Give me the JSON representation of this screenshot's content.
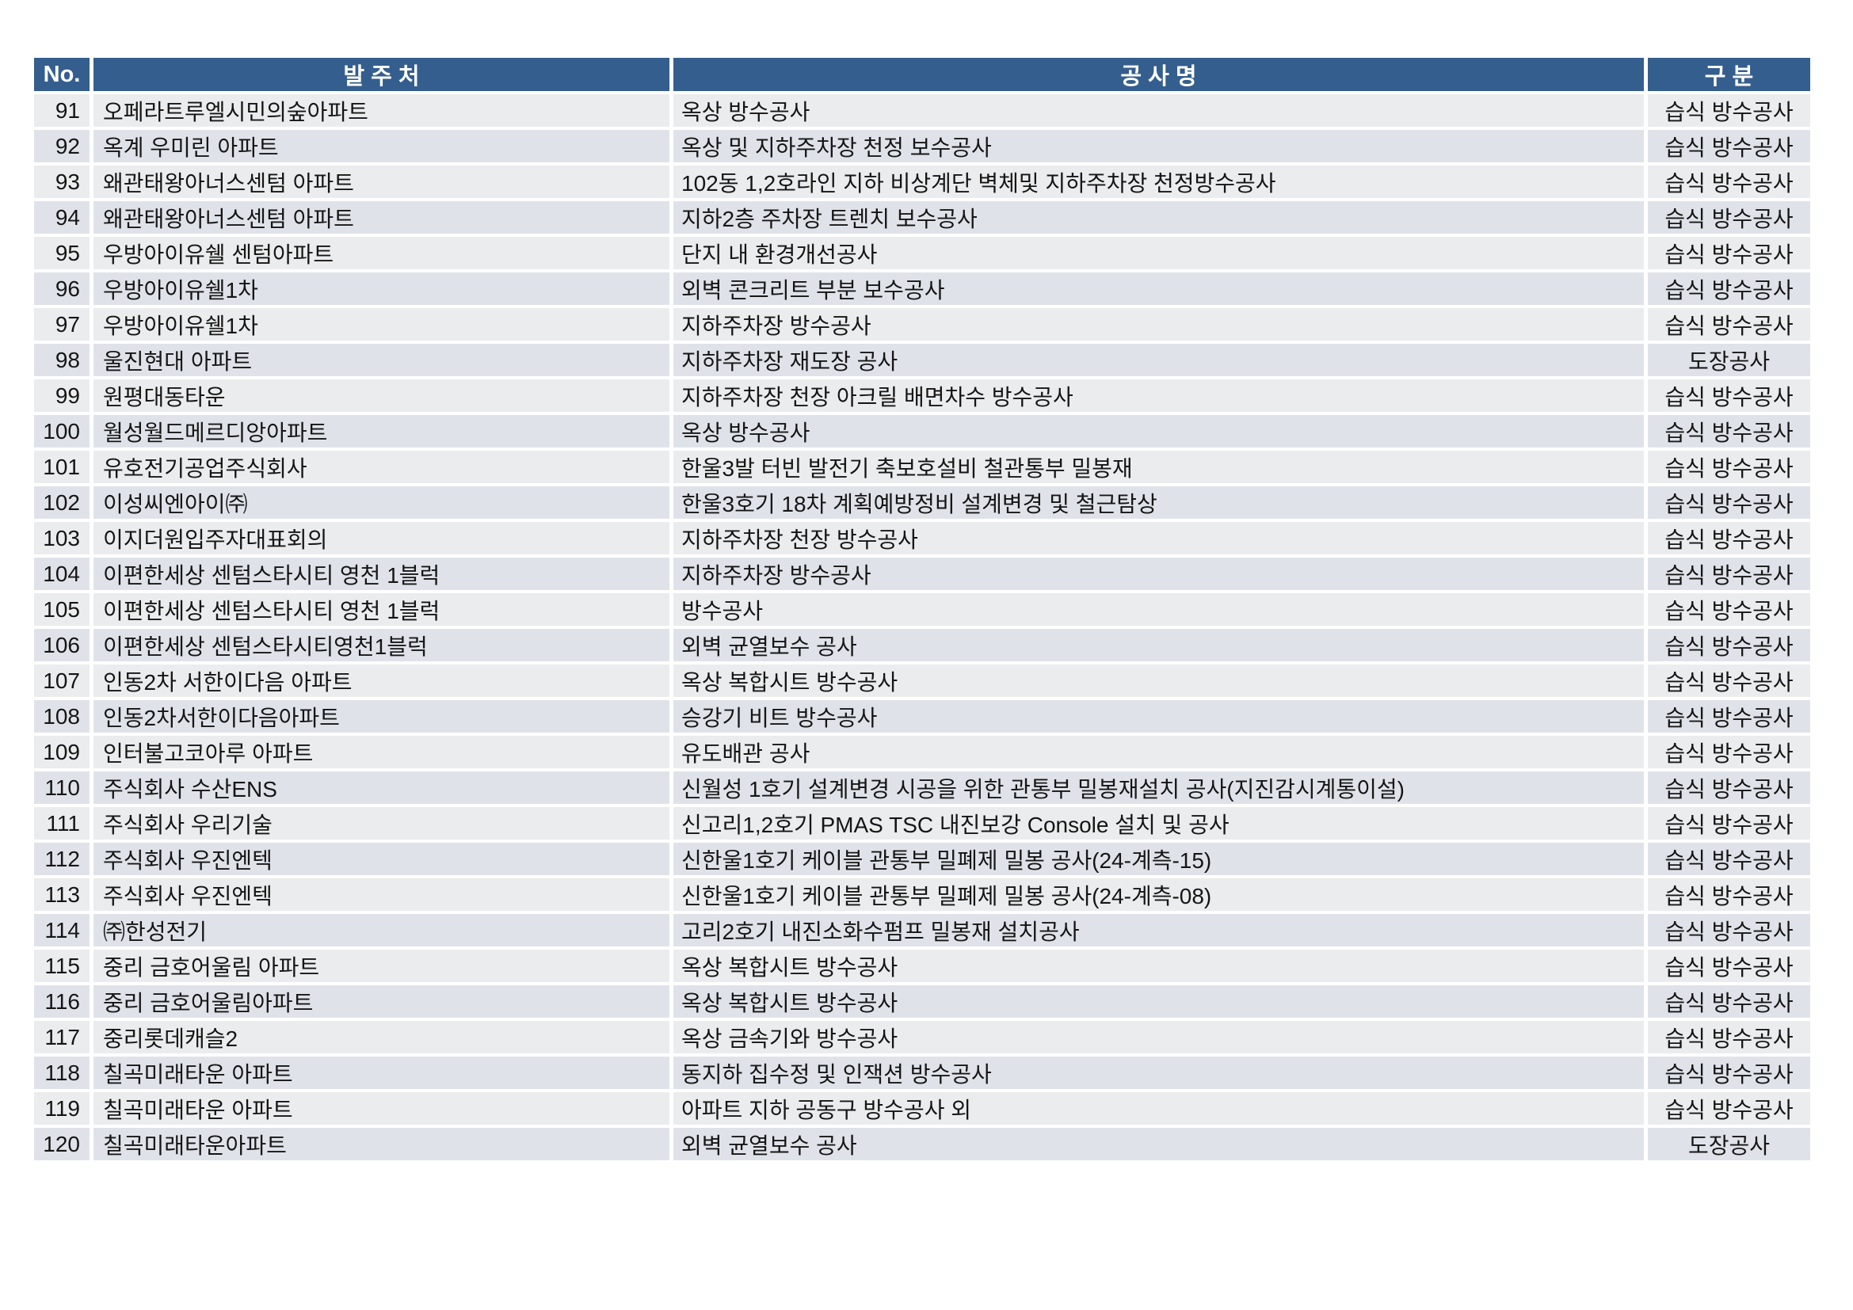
{
  "colors": {
    "header_bg": "#345E8E",
    "header_text": "#FFFFFF",
    "row_odd_bg": "#EBECED",
    "row_even_bg": "#DFE3E9",
    "body_text": "#151515",
    "page_bg": "#FFFFFF"
  },
  "table": {
    "headers": [
      "No.",
      "발 주 처",
      "공 사 명",
      "구 분"
    ],
    "rows": [
      {
        "no": "91",
        "client": "오페라트루엘시민의숲아파트",
        "project": "옥상 방수공사",
        "category": "습식 방수공사"
      },
      {
        "no": "92",
        "client": "옥계 우미린 아파트",
        "project": "옥상 및 지하주차장 천정 보수공사",
        "category": "습식 방수공사"
      },
      {
        "no": "93",
        "client": "왜관태왕아너스센텀 아파트",
        "project": "102동 1,2호라인 지하 비상계단 벽체및 지하주차장 천정방수공사",
        "category": "습식 방수공사"
      },
      {
        "no": "94",
        "client": "왜관태왕아너스센텀 아파트",
        "project": "지하2층 주차장 트렌치 보수공사",
        "category": "습식 방수공사"
      },
      {
        "no": "95",
        "client": "우방아이유쉘 센텀아파트",
        "project": "단지 내 환경개선공사",
        "category": "습식 방수공사"
      },
      {
        "no": "96",
        "client": "우방아이유쉘1차",
        "project": "외벽 콘크리트 부분 보수공사",
        "category": "습식 방수공사"
      },
      {
        "no": "97",
        "client": "우방아이유쉘1차",
        "project": "지하주차장 방수공사",
        "category": "습식 방수공사"
      },
      {
        "no": "98",
        "client": "울진현대 아파트",
        "project": "지하주차장 재도장 공사",
        "category": "도장공사"
      },
      {
        "no": "99",
        "client": "원평대동타운",
        "project": "지하주차장 천장 아크릴 배면차수 방수공사",
        "category": "습식 방수공사"
      },
      {
        "no": "100",
        "client": "월성월드메르디앙아파트",
        "project": "옥상 방수공사",
        "category": "습식 방수공사"
      },
      {
        "no": "101",
        "client": "유호전기공업주식회사",
        "project": "한울3발 터빈 발전기 축보호설비 철관통부 밀봉재",
        "category": "습식 방수공사"
      },
      {
        "no": "102",
        "client": "이성씨엔아이㈜",
        "project": "한울3호기 18차 계획예방정비 설계변경 및 철근탐상",
        "category": "습식 방수공사"
      },
      {
        "no": "103",
        "client": "이지더원입주자대표회의",
        "project": "지하주차장 천장 방수공사",
        "category": "습식 방수공사"
      },
      {
        "no": "104",
        "client": "이편한세상 센텀스타시티 영천 1블럭",
        "project": "지하주차장 방수공사",
        "category": "습식 방수공사"
      },
      {
        "no": "105",
        "client": "이편한세상 센텀스타시티 영천 1블럭",
        "project": "방수공사",
        "category": "습식 방수공사"
      },
      {
        "no": "106",
        "client": "이편한세상 센텀스타시티영천1블럭",
        "project": "외벽 균열보수 공사",
        "category": "습식 방수공사"
      },
      {
        "no": "107",
        "client": "인동2차 서한이다음 아파트",
        "project": "옥상 복합시트 방수공사",
        "category": "습식 방수공사"
      },
      {
        "no": "108",
        "client": "인동2차서한이다음아파트",
        "project": "승강기 비트 방수공사",
        "category": "습식 방수공사"
      },
      {
        "no": "109",
        "client": "인터불고코아루 아파트",
        "project": "유도배관 공사",
        "category": "습식 방수공사"
      },
      {
        "no": "110",
        "client": "주식회사 수산ENS",
        "project": "신월성 1호기 설계변경 시공을 위한 관통부 밀봉재설치 공사(지진감시계통이설)",
        "category": "습식 방수공사"
      },
      {
        "no": "111",
        "client": "주식회사 우리기술",
        "project": "신고리1,2호기 PMAS TSC 내진보강 Console 설치 및 공사",
        "category": "습식 방수공사"
      },
      {
        "no": "112",
        "client": "주식회사 우진엔텍",
        "project": "신한울1호기 케이블 관통부 밀폐제 밀봉 공사(24-계측-15)",
        "category": "습식 방수공사"
      },
      {
        "no": "113",
        "client": "주식회사 우진엔텍",
        "project": "신한울1호기 케이블 관통부 밀폐제 밀봉 공사(24-계측-08)",
        "category": "습식 방수공사"
      },
      {
        "no": "114",
        "client": "㈜한성전기",
        "project": "고리2호기 내진소화수펌프 밀봉재 설치공사",
        "category": "습식 방수공사"
      },
      {
        "no": "115",
        "client": "중리 금호어울림 아파트",
        "project": "옥상 복합시트 방수공사",
        "category": "습식 방수공사"
      },
      {
        "no": "116",
        "client": "중리 금호어울림아파트",
        "project": "옥상 복합시트 방수공사",
        "category": "습식 방수공사"
      },
      {
        "no": "117",
        "client": "중리롯데캐슬2",
        "project": "옥상 금속기와 방수공사",
        "category": "습식 방수공사"
      },
      {
        "no": "118",
        "client": "칠곡미래타운 아파트",
        "project": "동지하 집수정 및 인잭션 방수공사",
        "category": "습식 방수공사"
      },
      {
        "no": "119",
        "client": "칠곡미래타운 아파트",
        "project": "아파트 지하 공동구 방수공사 외",
        "category": "습식 방수공사"
      },
      {
        "no": "120",
        "client": "칠곡미래타운아파트",
        "project": "외벽 균열보수 공사",
        "category": "도장공사"
      }
    ]
  }
}
